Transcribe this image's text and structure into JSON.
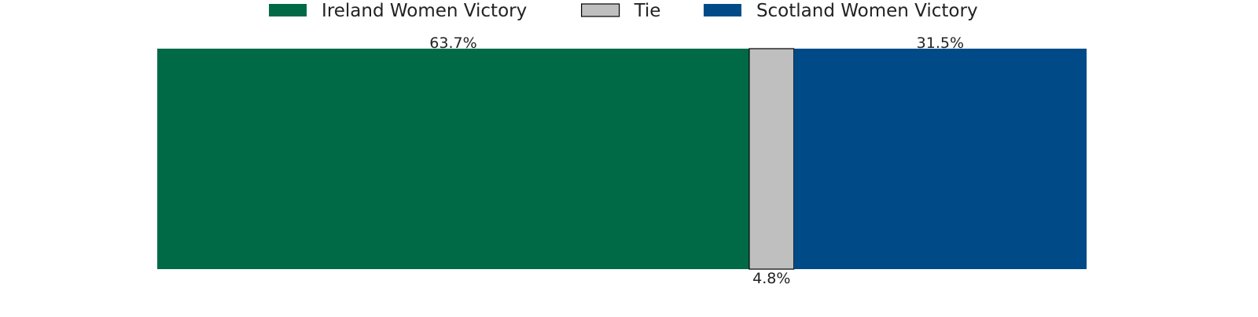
{
  "chart_data": {
    "type": "bar",
    "orientation": "horizontal-stacked",
    "stack_total": 100,
    "categories": [
      ""
    ],
    "series": [
      {
        "name": "Ireland Women Victory",
        "values": [
          63.7
        ],
        "label": "63.7%",
        "color": "#006a47",
        "label_position": "top"
      },
      {
        "name": "Tie",
        "values": [
          4.8
        ],
        "label": "4.8%",
        "color": "#bfbfbf",
        "label_position": "bottom"
      },
      {
        "name": "Scotland Women Victory",
        "values": [
          31.5
        ],
        "label": "31.5%",
        "color": "#004b87",
        "label_position": "top"
      }
    ],
    "legend": {
      "placement": "top-center",
      "entries": [
        "Ireland Women Victory",
        "Tie",
        "Scotland Women Victory"
      ]
    },
    "axes_visible": false,
    "grid": false,
    "title": "",
    "xlabel": "",
    "ylabel": ""
  }
}
